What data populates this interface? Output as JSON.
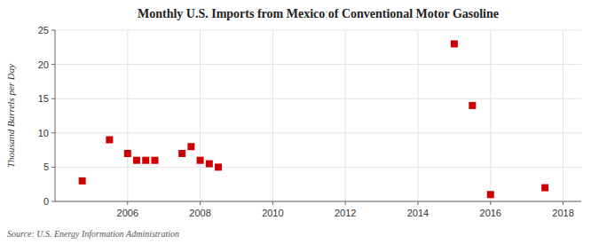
{
  "chart_data": {
    "type": "scatter",
    "title": "Monthly U.S. Imports from Mexico of Conventional Motor Gasoline",
    "ylabel": "Thousand Barrels per Day",
    "annotations": [
      "Source: U.S. Energy Information Administration"
    ],
    "x": [
      2004.75,
      2005.5,
      2006.0,
      2006.25,
      2006.5,
      2006.75,
      2007.5,
      2007.75,
      2008.0,
      2008.25,
      2008.5,
      2015.0,
      2015.5,
      2016.0,
      2017.5
    ],
    "values": [
      3,
      9,
      7,
      6,
      6,
      6,
      7,
      8,
      6,
      5.5,
      5,
      23,
      14,
      1,
      2
    ],
    "color": "#cc0000",
    "marker": "square",
    "xlim": [
      2004.0,
      2018.5
    ],
    "ylim": [
      0,
      25
    ],
    "xticks": [
      2006,
      2008,
      2010,
      2012,
      2014,
      2016,
      2018
    ],
    "yticks": [
      0,
      5,
      10,
      15,
      20,
      25
    ],
    "grid": true
  }
}
